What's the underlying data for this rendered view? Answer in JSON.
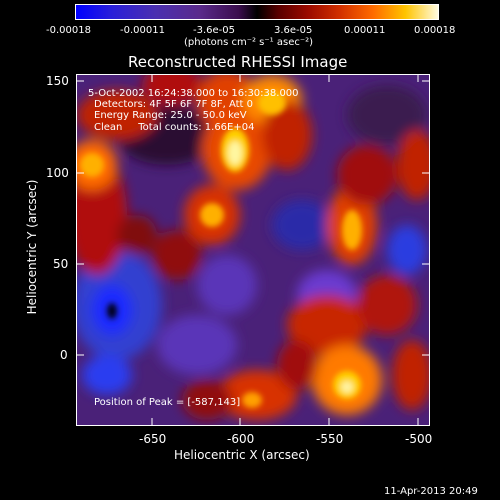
{
  "colorbar": {
    "ticks": [
      "-0.00018",
      "-0.00011",
      "-3.6e-05",
      "3.6e-05",
      "0.00011",
      "0.00018"
    ],
    "unit_label": "(photons cm⁻² s⁻¹ asec⁻²)"
  },
  "plot": {
    "title": "Reconstructed RHESSI Image",
    "info_lines": [
      "5-Oct-2002 16:24:38.000 to 16:30:38.000",
      "Detectors: 4F 5F 6F 7F 8F, Att 0",
      "Energy Range: 25.0 - 50.0 keV",
      "Clean     Total counts: 1.66E+04"
    ],
    "peak_label": "Position of Peak = [-587,143]",
    "xlabel": "Heliocentric X (arcsec)",
    "ylabel": "Heliocentric Y (arcsec)",
    "xticks": [
      "-650",
      "-600",
      "-550",
      "-500"
    ],
    "yticks": [
      "0",
      "50",
      "100",
      "150"
    ]
  },
  "footer": {
    "timestamp": "11-Apr-2013 20:49"
  }
}
